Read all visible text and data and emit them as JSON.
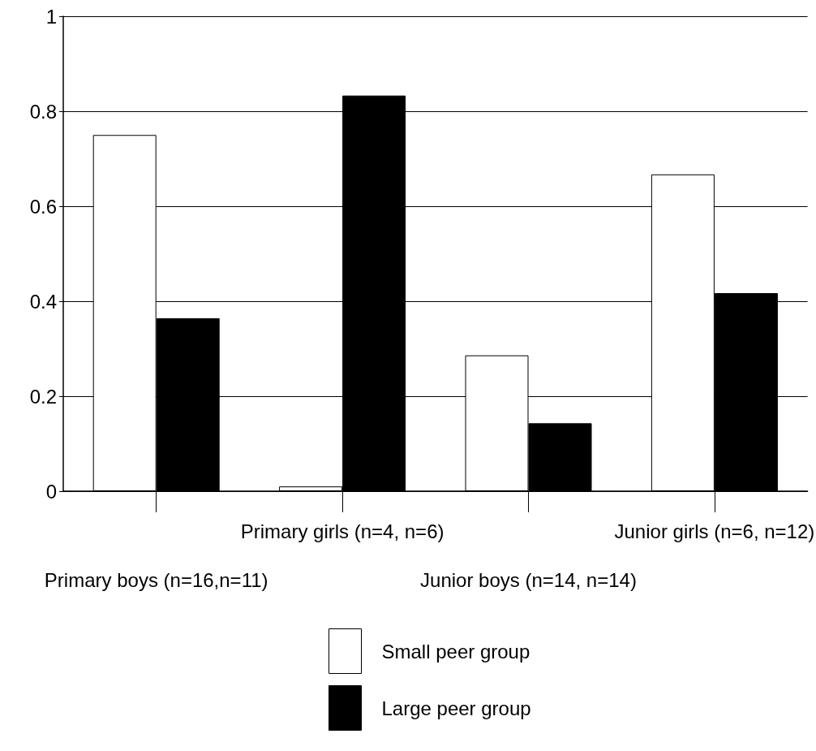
{
  "chart_data": {
    "type": "bar",
    "categories": [
      "Primary boys (n=16,n=11)",
      "Primary girls (n=4, n=6)",
      "Junior boys (n=14, n=14)",
      "Junior girls (n=6, n=12)"
    ],
    "series": [
      {
        "name": "Small peer group",
        "color": "#ffffff",
        "values": [
          0.75,
          0.01,
          0.286,
          0.667
        ]
      },
      {
        "name": "Large peer group",
        "color": "#000000",
        "values": [
          0.364,
          0.833,
          0.143,
          0.417
        ]
      }
    ],
    "ylim": [
      0,
      1
    ],
    "yticks": [
      0,
      0.2,
      0.4,
      0.6,
      0.8,
      1
    ],
    "grid": "y",
    "legend": "bottom"
  }
}
